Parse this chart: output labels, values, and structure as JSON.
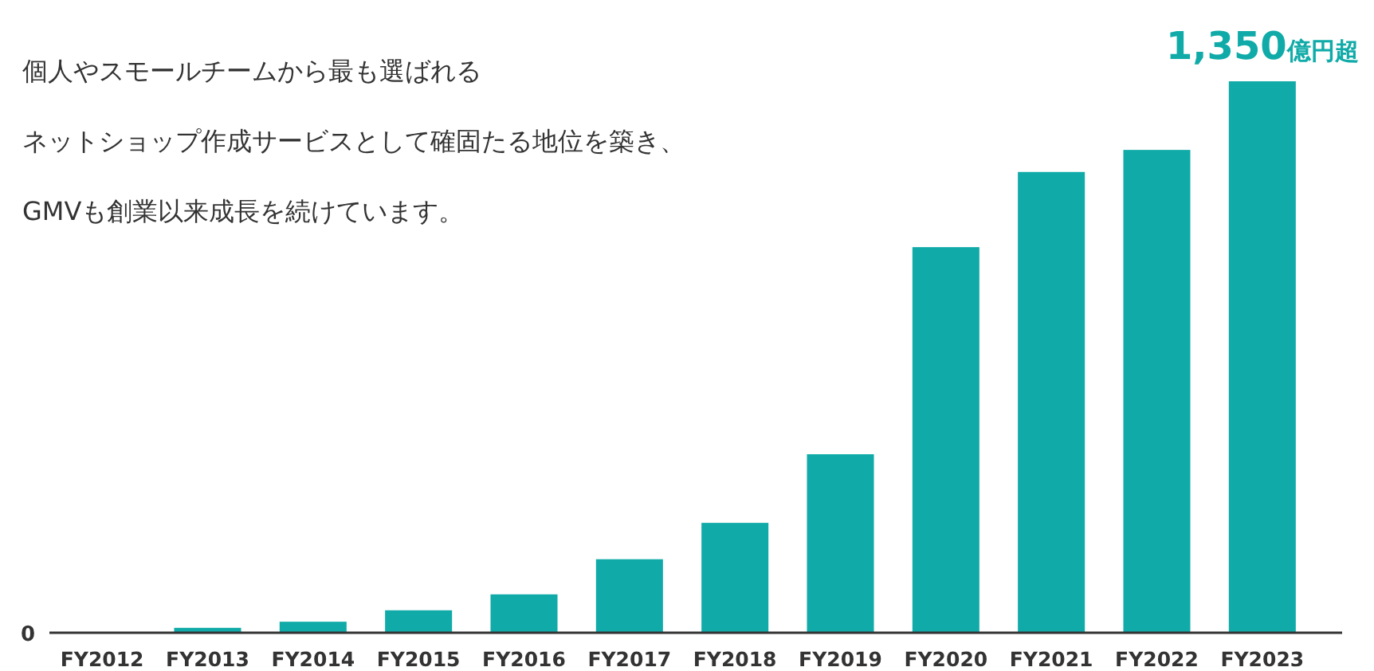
{
  "chart_data": {
    "type": "bar",
    "annotations": [
      "個人やスモールチームから最も選ばれる",
      "ネットショップ作成サービスとして確固たる地位を築き、",
      "GMVも創業以来成長を続けています。",
      "0"
    ],
    "categories": [
      "FY2012",
      "FY2013",
      "FY2014",
      "FY2015",
      "FY2016",
      "FY2017",
      "FY2018",
      "FY2019",
      "FY2020",
      "FY2021",
      "FY2022",
      "FY2023"
    ],
    "values": [
      0,
      12,
      27,
      55,
      94,
      180,
      269,
      437,
      944,
      1128,
      1182,
      1350
    ],
    "value_labels": [
      null,
      null,
      null,
      null,
      null,
      null,
      null,
      null,
      null,
      null,
      null,
      "1,350億円超"
    ],
    "color": "#10aba8",
    "ylim": [
      0,
      1350
    ]
  }
}
